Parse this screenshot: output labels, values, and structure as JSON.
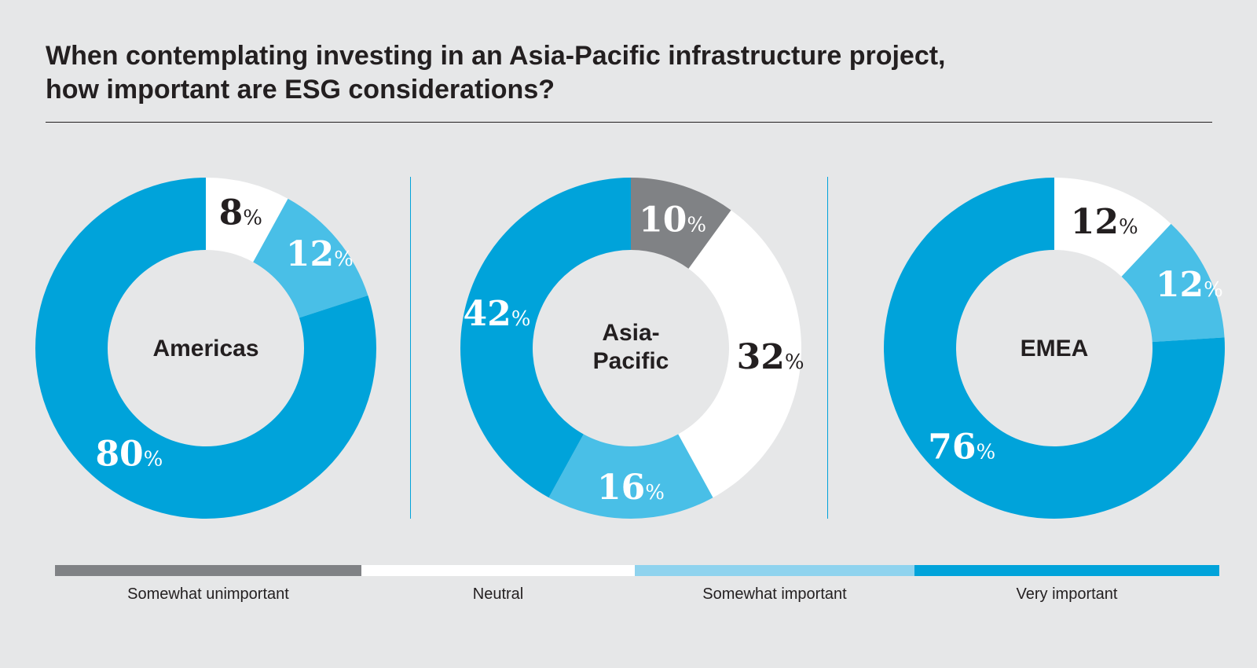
{
  "title": {
    "line1": "When contemplating investing in an Asia-Pacific infrastructure project,",
    "line2": "how important are ESG considerations?"
  },
  "colors": {
    "somewhat_unimportant": "#808285",
    "neutral": "#ffffff",
    "somewhat_important": "#49bfe7",
    "very_important": "#00a3da",
    "divider": "#00a3da",
    "background": "#e6e7e8"
  },
  "legend": [
    {
      "label": "Somewhat unimportant",
      "color": "#808285"
    },
    {
      "label": "Neutral",
      "color": "#ffffff"
    },
    {
      "label": "Somewhat important",
      "color": "#8fd3ee"
    },
    {
      "label": "Very important",
      "color": "#00a3da"
    }
  ],
  "chart_data": [
    {
      "type": "pie",
      "title": "Americas",
      "categories": [
        "Somewhat unimportant",
        "Neutral",
        "Somewhat important",
        "Very important"
      ],
      "values": [
        0,
        8,
        12,
        80
      ],
      "labels": [
        "",
        "8",
        "12",
        "80"
      ],
      "unit": "%"
    },
    {
      "type": "pie",
      "title": "Asia-Pacific",
      "categories": [
        "Somewhat unimportant",
        "Neutral",
        "Somewhat important",
        "Very important"
      ],
      "values": [
        10,
        32,
        16,
        42
      ],
      "labels": [
        "10",
        "32",
        "16",
        "42"
      ],
      "unit": "%"
    },
    {
      "type": "pie",
      "title": "EMEA",
      "categories": [
        "Somewhat unimportant",
        "Neutral",
        "Somewhat important",
        "Very important"
      ],
      "values": [
        0,
        12,
        12,
        76
      ],
      "labels": [
        "",
        "12",
        "12",
        "76"
      ],
      "unit": "%"
    }
  ]
}
